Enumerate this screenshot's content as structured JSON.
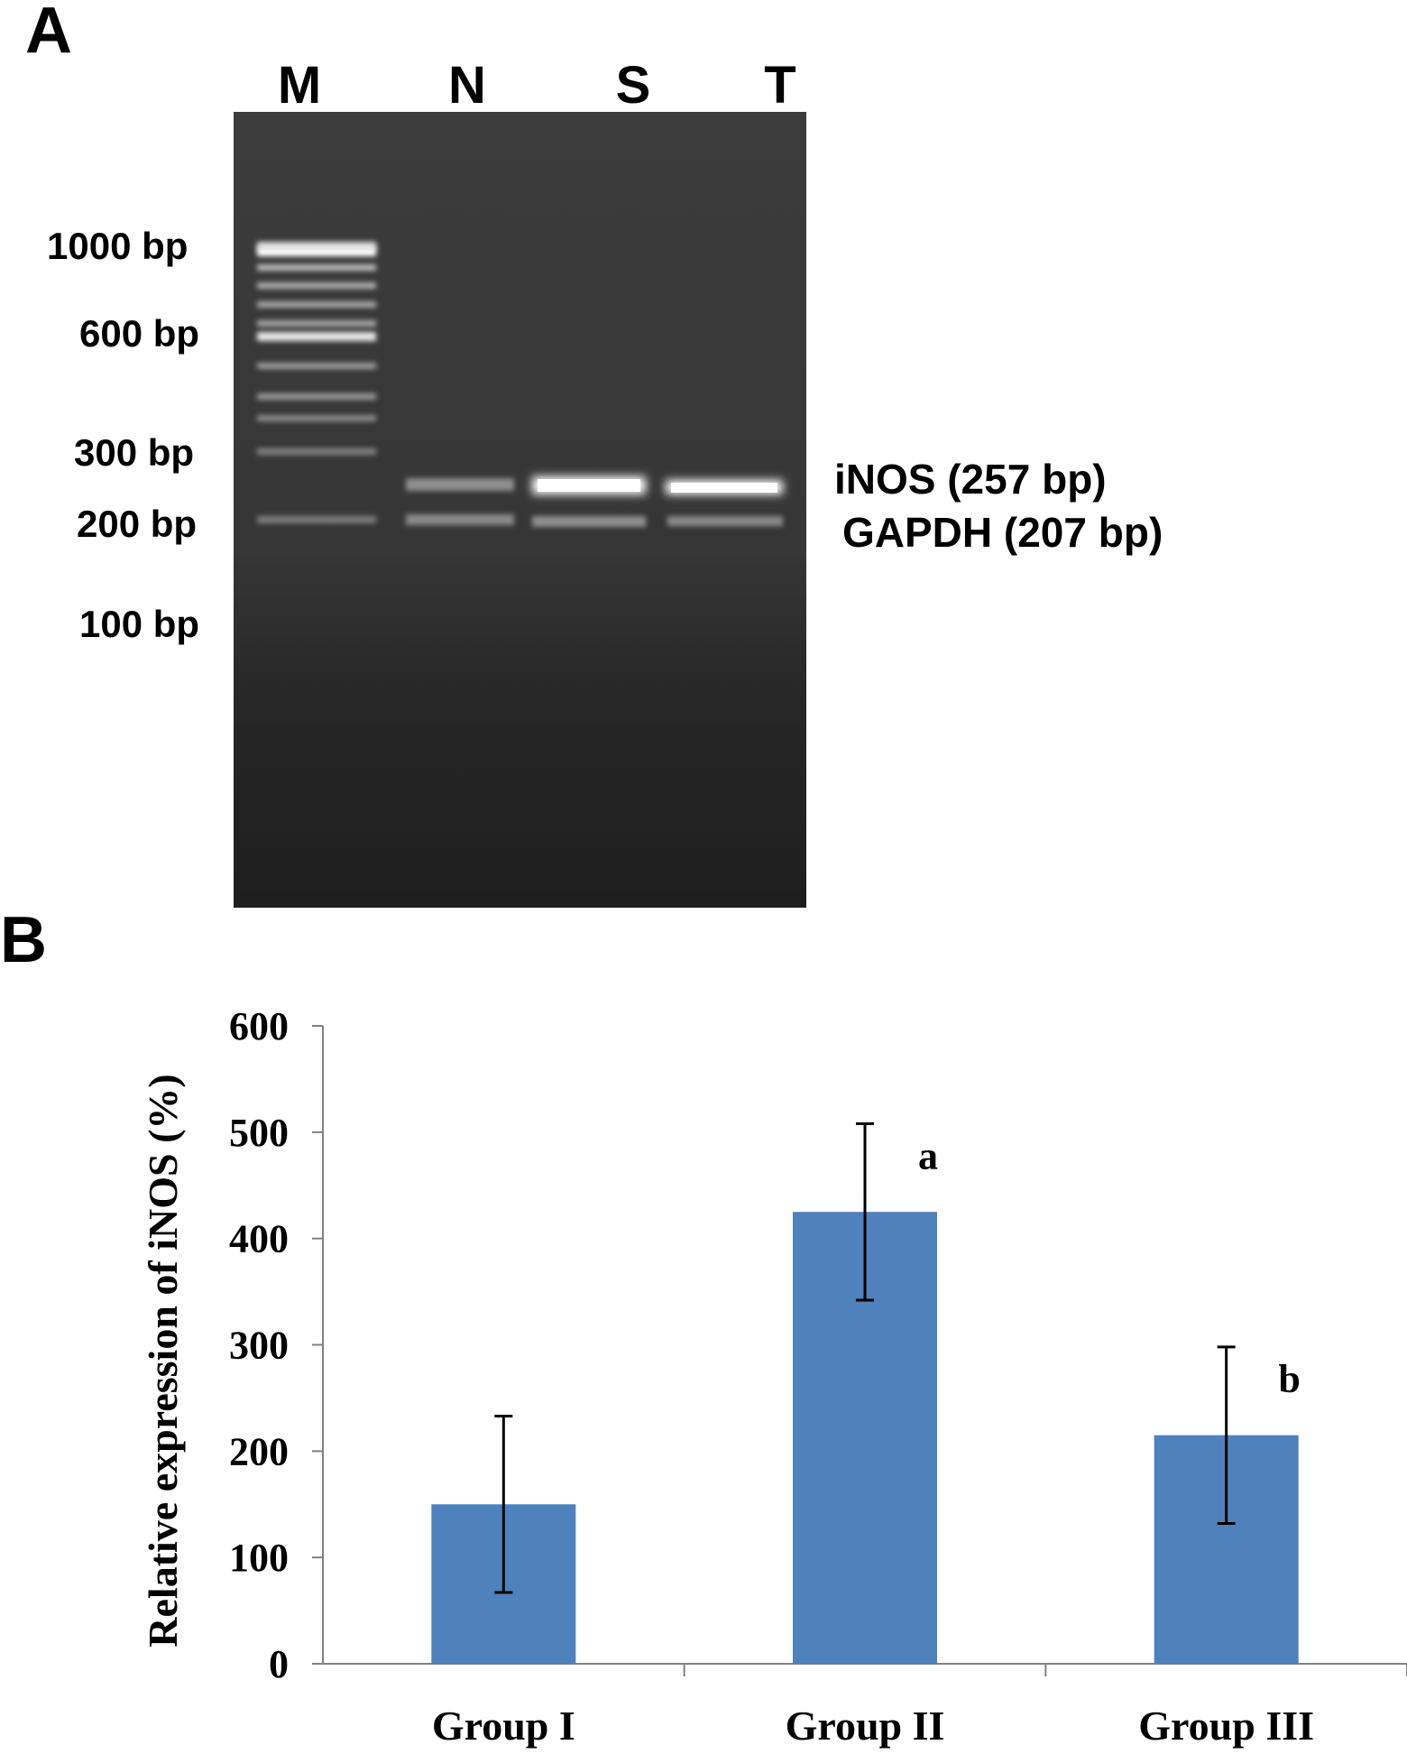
{
  "figure": {
    "panel_a_label": "A",
    "panel_b_label": "B"
  },
  "gel": {
    "lanes": [
      "M",
      "N",
      "S",
      "T"
    ],
    "marker_labels": [
      "1000 bp",
      "600 bp",
      "300 bp",
      "200 bp",
      "100 bp"
    ],
    "band_labels": {
      "inos": "iNOS (257 bp)",
      "gapdh": "GAPDH (207 bp)"
    },
    "colors": {
      "background": "#2f2f2f",
      "band": "#ffffff"
    }
  },
  "chart_data": {
    "type": "bar",
    "categories": [
      "Group I",
      "Group II",
      "Group III"
    ],
    "values": [
      150,
      425,
      215
    ],
    "errors": [
      83,
      83,
      83
    ],
    "annotations": [
      "",
      "a",
      "b"
    ],
    "ylabel": "Relative expression of iNOS (%)",
    "xlabel": "",
    "ylim": [
      0,
      600
    ],
    "yticks": [
      "0",
      "100",
      "200",
      "300",
      "400",
      "500",
      "600"
    ],
    "grid": false,
    "bar_color": "#4f81bd"
  }
}
